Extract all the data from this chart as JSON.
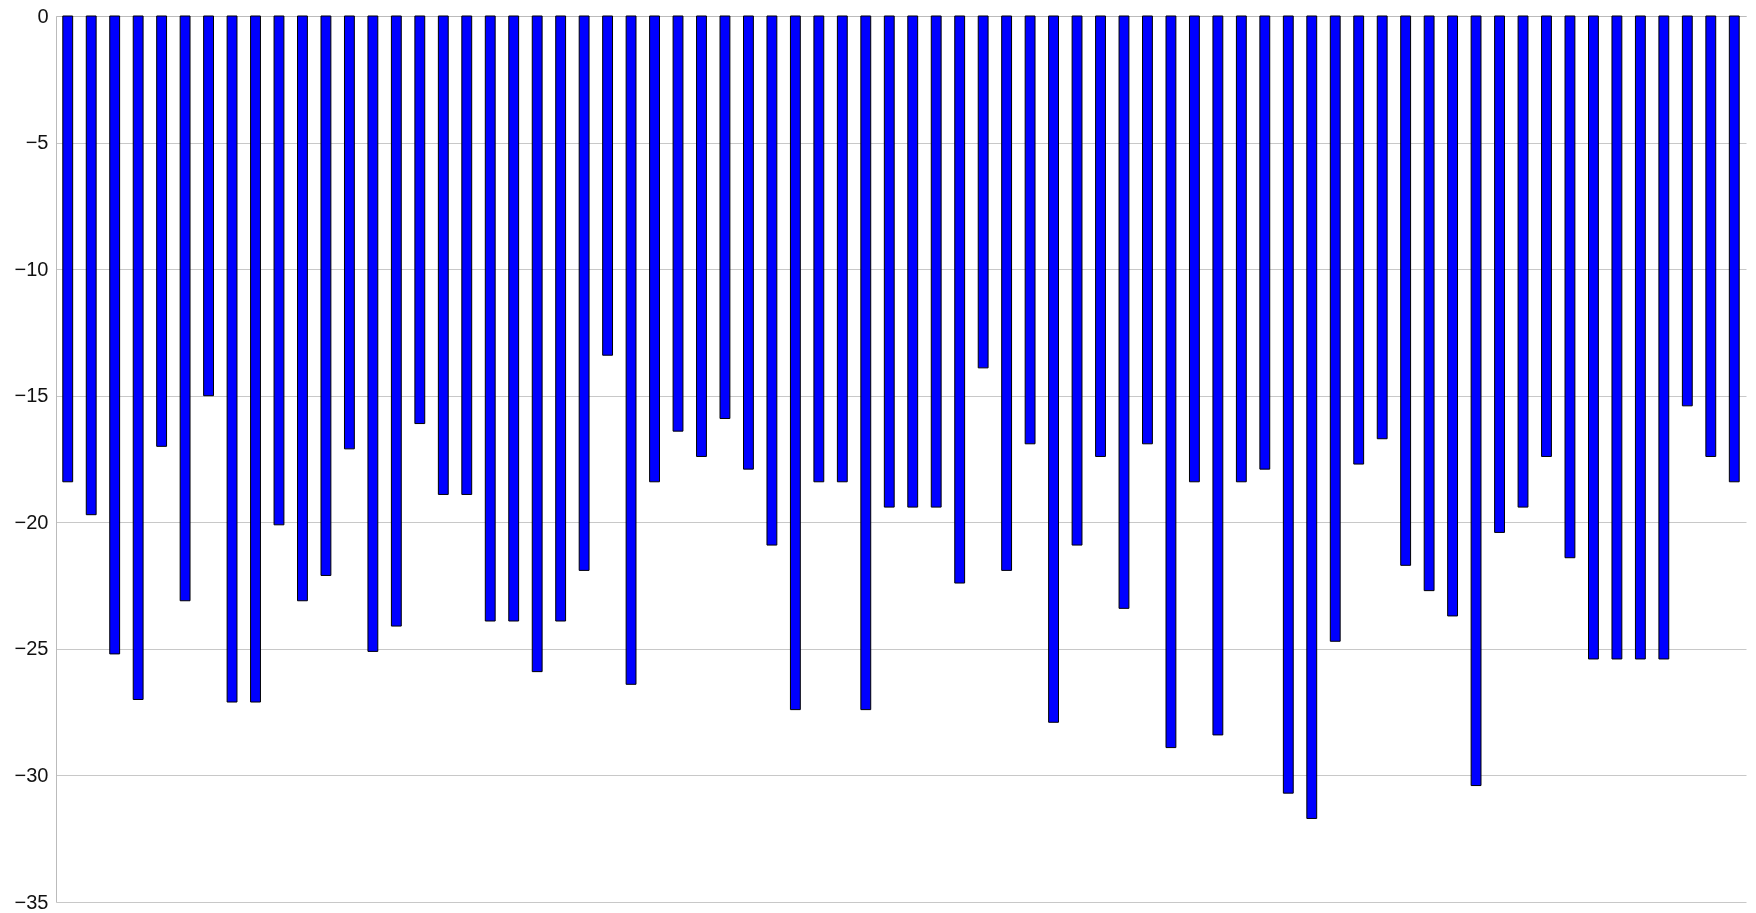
{
  "chart_data": {
    "type": "bar",
    "categories": [
      null,
      null,
      null,
      null,
      null,
      null,
      null,
      null,
      null,
      null,
      null,
      null,
      null,
      null,
      null,
      null,
      null,
      null,
      null,
      null,
      null,
      null,
      null,
      null,
      null,
      null,
      null,
      null,
      null,
      null,
      null,
      null,
      null,
      null,
      null,
      null,
      null,
      null,
      null,
      null,
      null,
      null,
      null,
      null,
      null,
      null,
      null,
      null,
      null,
      null,
      null,
      null,
      null,
      null,
      null,
      null,
      null,
      null,
      null,
      null,
      null,
      null,
      null,
      null,
      null,
      null,
      null,
      null,
      null,
      null,
      null,
      null
    ],
    "values": [
      -18.4,
      -19.7,
      -25.2,
      -27.0,
      -17.0,
      -23.1,
      -15.0,
      -27.1,
      -27.1,
      -20.1,
      -23.1,
      -22.1,
      -17.1,
      -25.1,
      -24.1,
      -16.1,
      -18.9,
      -18.9,
      -23.9,
      -23.9,
      -25.9,
      -23.9,
      -21.9,
      -13.4,
      -26.4,
      -18.4,
      -16.4,
      -17.4,
      -15.9,
      -17.9,
      -20.9,
      -27.4,
      -18.4,
      -18.4,
      -27.4,
      -19.4,
      -19.4,
      -19.4,
      -22.4,
      -13.9,
      -21.9,
      -16.9,
      -27.9,
      -20.9,
      -17.4,
      -23.4,
      -16.9,
      -28.9,
      -18.4,
      -28.4,
      -18.4,
      -17.9,
      -30.7,
      -31.7,
      -24.7,
      -17.7,
      -16.7,
      -21.7,
      -22.7,
      -23.7,
      -30.4,
      -20.4,
      -19.4,
      -17.4,
      -21.4,
      -25.4,
      -25.4,
      -25.4,
      -25.4,
      -15.4,
      -17.4,
      -18.4
    ],
    "color": "#0000ff",
    "ylim": [
      -35,
      0
    ],
    "yticks": [
      0,
      -5,
      -10,
      -15,
      -20,
      -25,
      -30,
      -35
    ],
    "grid": "y",
    "tick_labels": "y"
  }
}
